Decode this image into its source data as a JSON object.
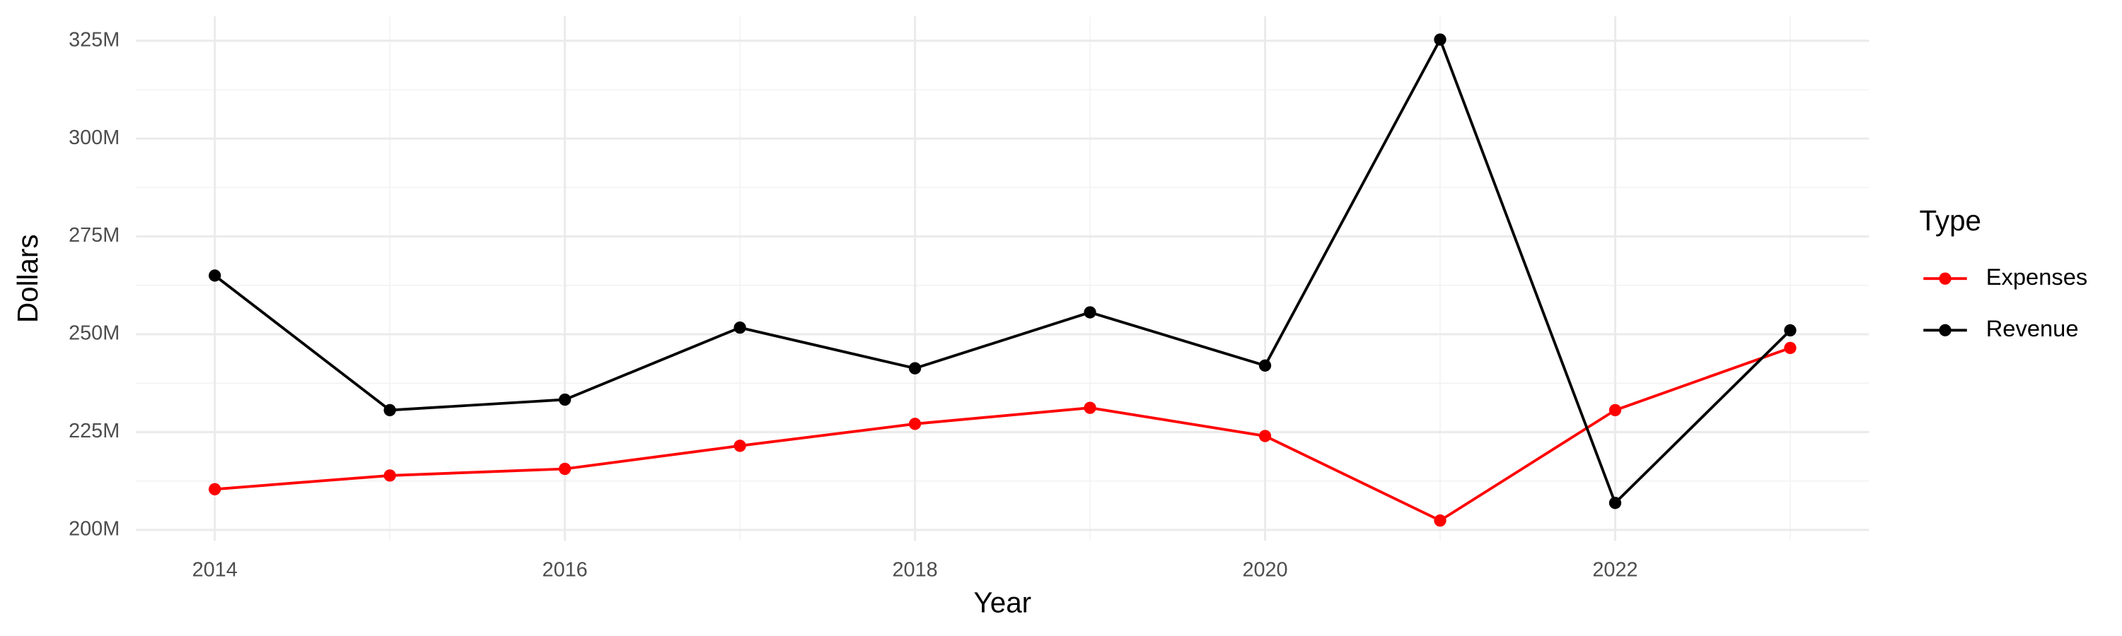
{
  "chart_data": {
    "type": "line",
    "x_label": "Year",
    "y_label": "Dollars",
    "x": [
      2014,
      2015,
      2016,
      2017,
      2018,
      2019,
      2020,
      2021,
      2022,
      2023
    ],
    "series": [
      {
        "name": "Expenses",
        "color": "#ff0000",
        "values": [
          210400000,
          213900000,
          215600000,
          221500000,
          227100000,
          231200000,
          224000000,
          202400000,
          230600000,
          246500000
        ]
      },
      {
        "name": "Revenue",
        "color": "#000000",
        "values": [
          265000000,
          230600000,
          233300000,
          251700000,
          241300000,
          255600000,
          242000000,
          325300000,
          206900000,
          251000000
        ]
      }
    ],
    "xlim": [
      2013.55,
      2023.45
    ],
    "xticks": [
      2014,
      2016,
      2018,
      2020,
      2022
    ],
    "ylim": [
      197200000,
      331250000
    ],
    "yticks": [
      {
        "value": 200000000,
        "label": "200M"
      },
      {
        "value": 225000000,
        "label": "225M"
      },
      {
        "value": 250000000,
        "label": "250M"
      },
      {
        "value": 275000000,
        "label": "275M"
      },
      {
        "value": 300000000,
        "label": "300M"
      },
      {
        "value": 325000000,
        "label": "325M"
      }
    ],
    "grid": true,
    "legend": {
      "title": "Type",
      "position": "right"
    }
  }
}
